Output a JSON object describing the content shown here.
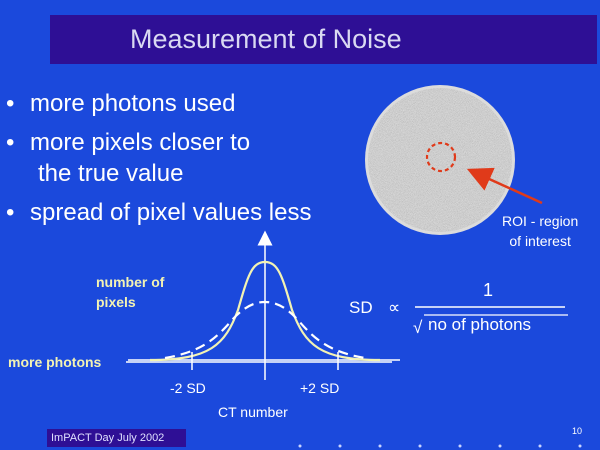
{
  "slide": {
    "title": "Measurement of Noise",
    "bullets": [
      {
        "marker": "•",
        "line1": "more photons used",
        "line2": ""
      },
      {
        "marker": "•",
        "line1": "more pixels closer to",
        "line2": "the true value"
      },
      {
        "marker": "•",
        "line1": "spread of pixel values less",
        "line2": ""
      }
    ],
    "roi": {
      "line1": "ROI - region",
      "line2": "of interest"
    },
    "graph": {
      "ylabel_line1": "number of",
      "ylabel_line2": "pixels",
      "more_photons": "more photons",
      "minus_sd": "-2 SD",
      "plus_sd": "+2 SD",
      "xlabel": "CT number"
    },
    "formula": {
      "sd": "SD",
      "proportional": "∝",
      "numerator": "1",
      "root": "√",
      "denominator": "no of photons"
    },
    "footer": "ImPACT Day July 2002",
    "page_number": "10"
  },
  "colors": {
    "background": "#1b49dc",
    "title_bar": "#2e0f95",
    "curve": "#f3f3b3",
    "roi_circle": "#e03a1a"
  }
}
